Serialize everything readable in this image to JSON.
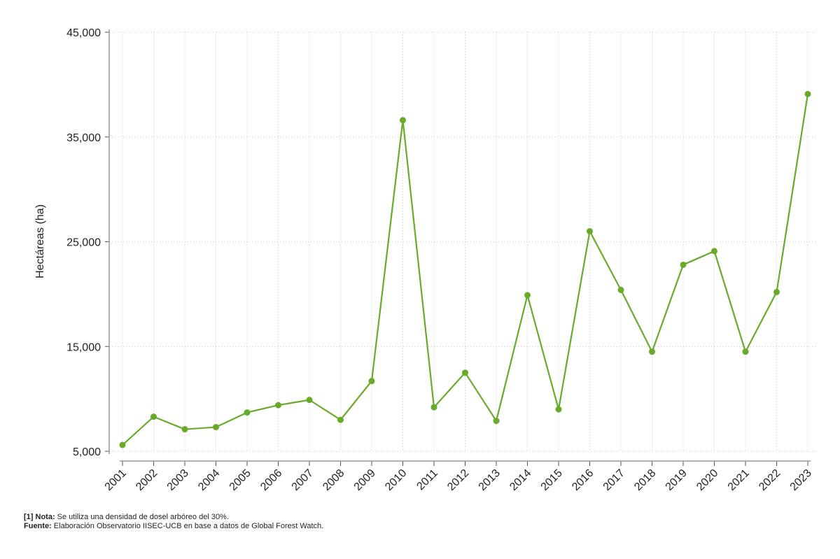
{
  "chart_data": {
    "type": "line",
    "title": "",
    "xlabel": "",
    "ylabel": "Hectáreas (ha)",
    "ylim": [
      5000,
      45000
    ],
    "yticks": [
      5000,
      15000,
      25000,
      35000,
      45000
    ],
    "ytick_labels": [
      "5,000",
      "15,000",
      "25,000",
      "35,000",
      "45,000"
    ],
    "categories": [
      "2001",
      "2002",
      "2003",
      "2004",
      "2005",
      "2006",
      "2007",
      "2008",
      "2009",
      "2010",
      "2011",
      "2012",
      "2013",
      "2014",
      "2015",
      "2016",
      "2017",
      "2018",
      "2019",
      "2020",
      "2021",
      "2022",
      "2023"
    ],
    "series": [
      {
        "values": [
          5600,
          8300,
          7100,
          7300,
          8700,
          9400,
          9900,
          8000,
          11700,
          36600,
          9200,
          12500,
          7900,
          19900,
          9000,
          26000,
          20400,
          14500,
          22800,
          24100,
          14500,
          20200,
          39100
        ],
        "color": "#6aaa2a"
      }
    ],
    "grid": true,
    "grid_style": "dotted",
    "legend": "none"
  },
  "notes": {
    "note_label": "[1] Nota:",
    "note_text": " Se utiliza una densidad de dosel arbóreo del 30%.",
    "source_label": "Fuente:",
    "source_text": " Elaboración Observatorio IISEC-UCB en base a datos de Global Forest Watch."
  }
}
